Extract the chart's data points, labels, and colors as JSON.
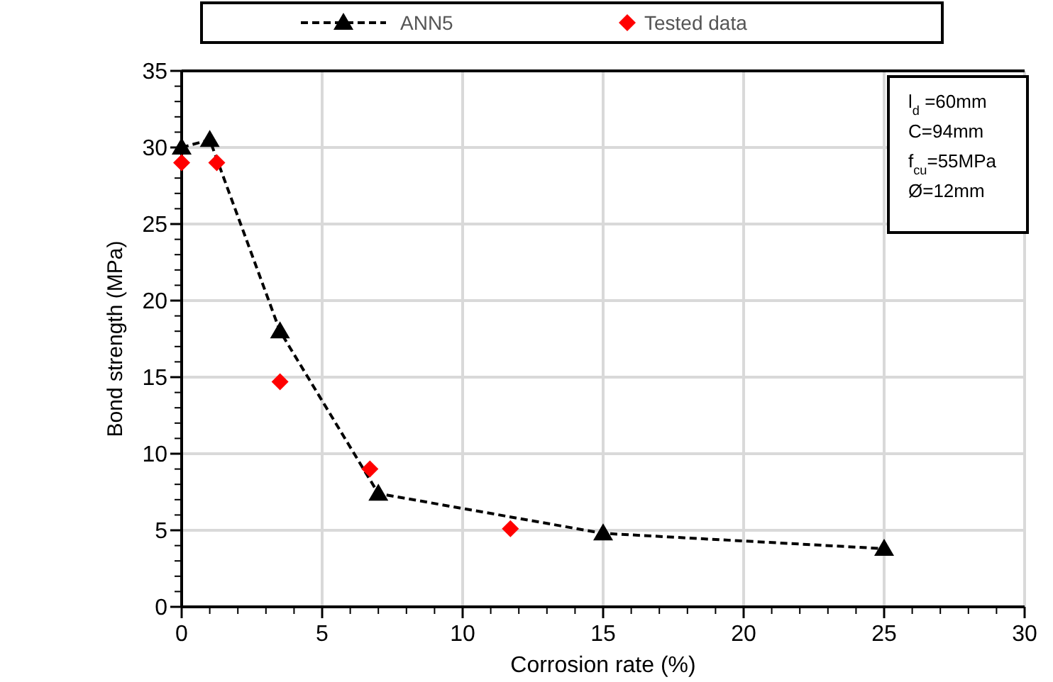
{
  "chart_data": {
    "type": "line",
    "xlabel": "Corrosion rate (%)",
    "ylabel": "Bond strength (MPa)",
    "xlim": [
      0,
      30
    ],
    "xticks": [
      0,
      5,
      10,
      15,
      20,
      25,
      30
    ],
    "ylim": [
      0,
      35
    ],
    "yticks": [
      0,
      5,
      10,
      15,
      20,
      25,
      30,
      35
    ],
    "grid": true,
    "legend": "top",
    "series": [
      {
        "name": "ANN5",
        "color": "#000000",
        "marker": "triangle",
        "line_style": "dashed",
        "x": [
          0,
          1,
          3.5,
          7,
          15,
          25
        ],
        "values": [
          30,
          30.5,
          18,
          7.4,
          4.8,
          3.8
        ]
      },
      {
        "name": "Tested data",
        "type": "scatter",
        "color": "#ff0000",
        "marker": "diamond",
        "x": [
          0,
          1.25,
          3.5,
          6.7,
          11.7
        ],
        "values": [
          29,
          29,
          14.7,
          9,
          5.1
        ]
      }
    ],
    "annotations": [
      "l$_{d}$ =60mm",
      "C=94mm",
      "f$_{cu}$=55MPa",
      "Ø=12mm"
    ]
  }
}
